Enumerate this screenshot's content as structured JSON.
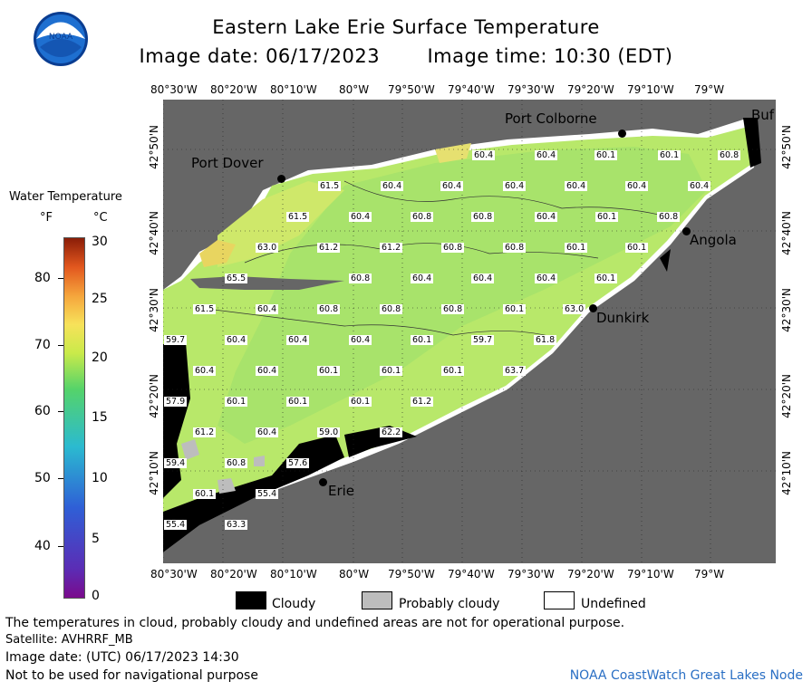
{
  "header": {
    "title": "Eastern Lake Erie Surface Temperature",
    "image_date": "Image date: 06/17/2023",
    "image_time": "Image time: 10:30 (EDT)"
  },
  "logo": {
    "text": "NOAA"
  },
  "colorbar": {
    "title": "Water Temperature",
    "unit_f": "°F",
    "unit_c": "°C",
    "f_ticks": [
      "80",
      "70",
      "60",
      "50",
      "40"
    ],
    "c_ticks": [
      "30",
      "25",
      "20",
      "15",
      "10",
      "5",
      "0"
    ]
  },
  "axes": {
    "lon_labels": [
      "80°30'W",
      "80°20'W",
      "80°10'W",
      "80°W",
      "79°50'W",
      "79°40'W",
      "79°30'W",
      "79°20'W",
      "79°10'W",
      "79°W"
    ],
    "lat_labels": [
      "42°50'N",
      "42°40'N",
      "42°30'N",
      "42°20'N",
      "42°10'N"
    ]
  },
  "places": {
    "port_colborne": "Port Colborne",
    "port_dover": "Port Dover",
    "angola": "Angola",
    "dunkirk": "Dunkirk",
    "erie": "Erie",
    "buffalo": "Buf"
  },
  "temps": [
    "60.4",
    "60.4",
    "60.1",
    "60.1",
    "60.8",
    "61.5",
    "60.4",
    "60.4",
    "60.4",
    "60.4",
    "60.4",
    "60.4",
    "61.5",
    "60.4",
    "60.8",
    "60.8",
    "60.4",
    "60.1",
    "60.8",
    "63.0",
    "61.2",
    "61.2",
    "60.8",
    "60.8",
    "60.1",
    "60.1",
    "65.5",
    "60.8",
    "60.4",
    "60.4",
    "60.4",
    "60.1",
    "61.5",
    "60.4",
    "60.8",
    "60.8",
    "60.8",
    "60.1",
    "63.0",
    "59.7",
    "60.4",
    "60.4",
    "60.4",
    "60.1",
    "59.7",
    "61.8",
    "60.4",
    "60.4",
    "60.1",
    "60.1",
    "60.1",
    "63.7",
    "57.9",
    "60.1",
    "60.1",
    "60.1",
    "61.2",
    "61.2",
    "60.4",
    "59.0",
    "62.2",
    "59.4",
    "60.8",
    "57.6",
    "60.1",
    "55.4",
    "55.4",
    "63.3"
  ],
  "legend": {
    "cloudy": "Cloudy",
    "probably_cloudy": "Probably cloudy",
    "undefined": "Undefined",
    "colors": {
      "cloudy": "#000000",
      "probably_cloudy": "#bdbdbd",
      "undefined": "#ffffff",
      "land": "#666666"
    }
  },
  "footer": {
    "disclaimer": "The temperatures in cloud, probably cloudy and undefined areas are not for operational purpose.",
    "satellite": "Satellite: AVHRRF_MB",
    "utc_date": "Image date: (UTC) 06/17/2023  14:30",
    "nav_warning": "Not to be used for navigational purpose",
    "credit": "NOAA CoastWatch Great Lakes Node"
  }
}
